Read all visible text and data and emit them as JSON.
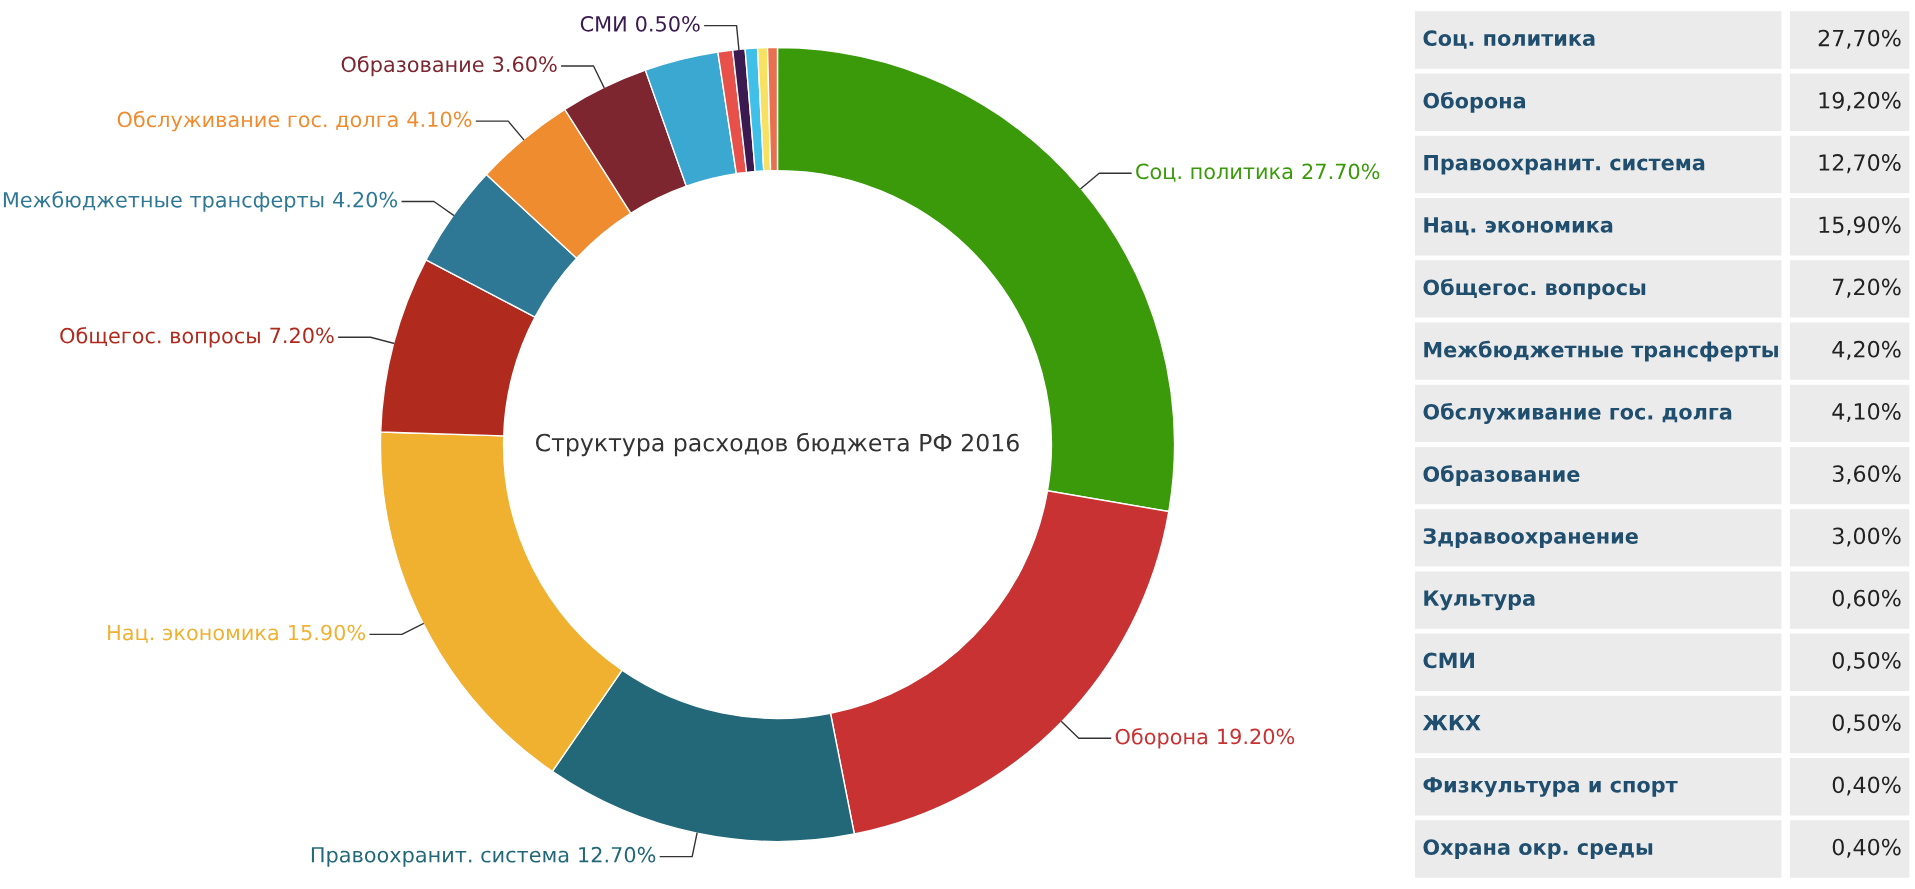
{
  "chart_data": [
    {
      "type": "donut",
      "title": "Структура расходов бюджета РФ 2016",
      "categories": [
        "Соц. политика",
        "Оборона",
        "Правоохранит. система",
        "Нац. экономика",
        "Общегос. вопросы",
        "Межбюджетные трансферты",
        "Обслуживание гос. долга",
        "Образование",
        null,
        null,
        "СМИ",
        null,
        null,
        null
      ],
      "values": [
        27.7,
        19.2,
        12.7,
        15.9,
        7.2,
        4.2,
        4.1,
        3.6,
        3.0,
        0.6,
        0.5,
        0.5,
        0.4,
        0.4
      ],
      "colors": [
        "#3a9a0a",
        "#c83232",
        "#236878",
        "#f0b030",
        "#b02a1e",
        "#2e7896",
        "#f08c30",
        "#7e2630",
        "#3aa8d0",
        "#e8504a",
        "#3a1a50",
        "#40c0e8",
        "#f8e060",
        "#e87050"
      ],
      "value_labels": [
        "27.70%",
        "19.20%",
        "12.70%",
        "15.90%",
        "7.20%",
        "4.20%",
        "4.10%",
        "3.60%",
        null,
        null,
        "0.50%",
        null,
        null,
        null
      ]
    },
    {
      "type": "other",
      "categories": [
        "Соц. политика",
        "Оборона",
        "Правоохранит. система",
        "Нац. экономика",
        "Общегос. вопросы",
        "Межбюджетные трансферты",
        "Обслуживание гос. долга",
        "Образование",
        "Здравоохранение",
        "Культура",
        "СМИ",
        "ЖКХ",
        "Физкультура и спорт",
        "Охрана окр. среды"
      ],
      "value_labels": [
        "27,70%",
        "19,20%",
        "12,70%",
        "15,90%",
        "7,20%",
        "4,20%",
        "4,10%",
        "3,60%",
        "3,00%",
        "0,60%",
        "0,50%",
        "0,50%",
        "0,40%",
        "0,40%"
      ]
    }
  ]
}
